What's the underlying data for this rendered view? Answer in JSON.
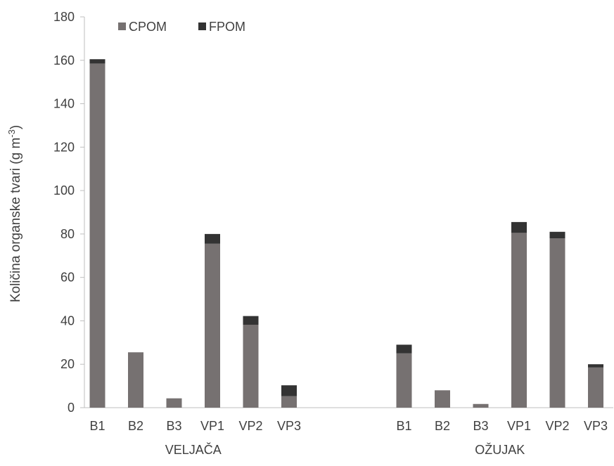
{
  "chart_data": {
    "type": "bar",
    "stacked": true,
    "ylabel": "Količina organske tvari (g m",
    "ylabel_sup": "-3",
    "ylabel_close": ")",
    "ylim": [
      0,
      180
    ],
    "yticks": [
      0,
      20,
      40,
      60,
      80,
      100,
      120,
      140,
      160,
      180
    ],
    "grid": false,
    "legend_position": "top-left",
    "groups": [
      {
        "label": "VELJAČA",
        "categories": [
          "B1",
          "B2",
          "B3",
          "VP1",
          "VP2",
          "VP3"
        ]
      },
      {
        "label": "OŽUJAK",
        "categories": [
          "B1",
          "B2",
          "B3",
          "VP1",
          "VP2",
          "VP3"
        ]
      }
    ],
    "series": [
      {
        "name": "CPOM",
        "color": "#767171",
        "values": [
          158.5,
          25.5,
          4.3,
          75.5,
          38.2,
          5.3,
          25.0,
          8.0,
          1.7,
          80.5,
          78.0,
          18.5
        ]
      },
      {
        "name": "FPOM",
        "color": "#333333",
        "values": [
          2.0,
          0.0,
          0.0,
          4.5,
          4.0,
          5.0,
          4.0,
          0.0,
          0.0,
          5.0,
          3.0,
          1.5
        ]
      }
    ]
  }
}
